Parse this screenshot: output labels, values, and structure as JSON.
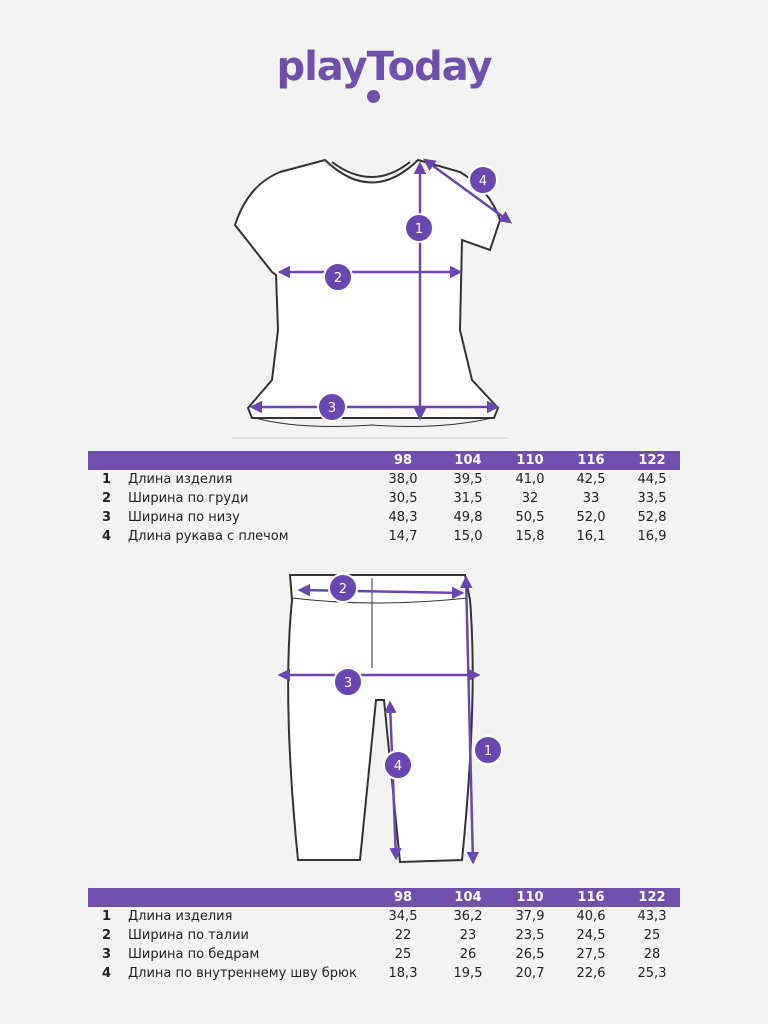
{
  "brand": {
    "name": "playToday",
    "color": "#7150ad"
  },
  "shirt": {
    "markers": [
      "1",
      "2",
      "3",
      "4"
    ],
    "sizes": [
      "98",
      "104",
      "110",
      "116",
      "122"
    ],
    "rows": [
      {
        "n": "1",
        "label": "Длина изделия",
        "values": [
          "38,0",
          "39,5",
          "41,0",
          "42,5",
          "44,5"
        ]
      },
      {
        "n": "2",
        "label": "Ширина по груди",
        "values": [
          "30,5",
          "31,5",
          "32",
          "33",
          "33,5"
        ]
      },
      {
        "n": "3",
        "label": "Ширина по низу",
        "values": [
          "48,3",
          "49,8",
          "50,5",
          "52,0",
          "52,8"
        ]
      },
      {
        "n": "4",
        "label": "Длина рукава с плечом",
        "values": [
          "14,7",
          "15,0",
          "15,8",
          "16,1",
          "16,9"
        ]
      }
    ]
  },
  "shorts": {
    "markers": [
      "1",
      "2",
      "3",
      "4"
    ],
    "sizes": [
      "98",
      "104",
      "110",
      "116",
      "122"
    ],
    "rows": [
      {
        "n": "1",
        "label": "Длина изделия",
        "values": [
          "34,5",
          "36,2",
          "37,9",
          "40,6",
          "43,3"
        ]
      },
      {
        "n": "2",
        "label": "Ширина по талии",
        "values": [
          "22",
          "23",
          "23,5",
          "24,5",
          "25"
        ]
      },
      {
        "n": "3",
        "label": "Ширина по бедрам",
        "values": [
          "25",
          "26",
          "26,5",
          "27,5",
          "28"
        ]
      },
      {
        "n": "4",
        "label": "Длина по внутреннему шву брюк",
        "values": [
          "18,3",
          "19,5",
          "20,7",
          "22,6",
          "25,3"
        ]
      }
    ]
  }
}
